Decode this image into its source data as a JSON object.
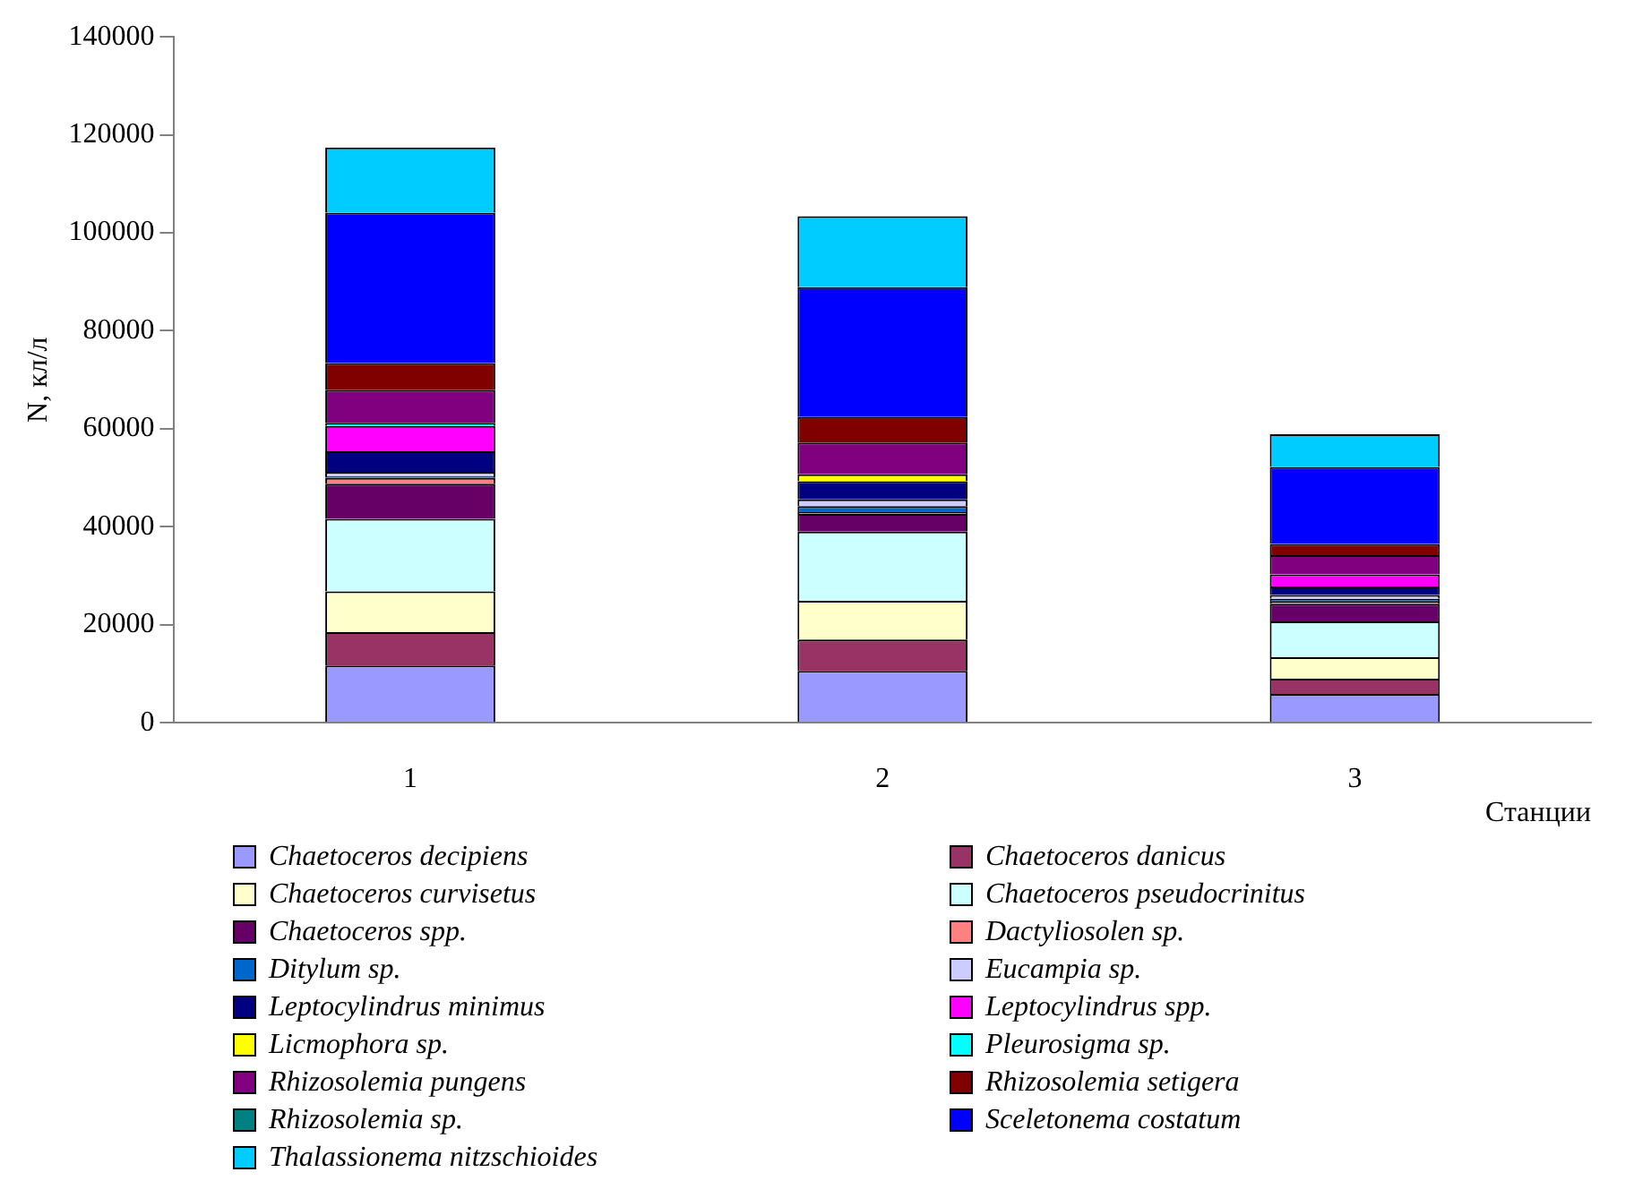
{
  "chart_data": {
    "type": "bar",
    "stacked": true,
    "xlabel": "Станции",
    "ylabel": "N, кл/л",
    "categories": [
      "1",
      "2",
      "3"
    ],
    "ylim": [
      0,
      140000
    ],
    "yticks": [
      0,
      20000,
      40000,
      60000,
      80000,
      100000,
      120000,
      140000
    ],
    "grid": false,
    "legend": "bottom",
    "series": [
      {
        "name": "Chaetoceros decipiens",
        "color": "#9999ff",
        "values": [
          11700,
          10600,
          5900
        ]
      },
      {
        "name": "Chaetoceros danicus",
        "color": "#993366",
        "values": [
          6800,
          6400,
          3100
        ]
      },
      {
        "name": "Chaetoceros curvisetus",
        "color": "#ffffcc",
        "values": [
          8300,
          7900,
          4400
        ]
      },
      {
        "name": "Chaetoceros pseudocrinitus",
        "color": "#ccffff",
        "values": [
          14800,
          14100,
          7300
        ]
      },
      {
        "name": "Chaetoceros spp.",
        "color": "#660066",
        "values": [
          7200,
          3600,
          3600
        ]
      },
      {
        "name": "Dactyliosolen sp.",
        "color": "#ff8080",
        "values": [
          1200,
          400,
          400
        ]
      },
      {
        "name": "Ditylum sp.",
        "color": "#0066cc",
        "values": [
          300,
          1200,
          600
        ]
      },
      {
        "name": "Eucampia sp.",
        "color": "#ccccff",
        "values": [
          900,
          1400,
          800
        ]
      },
      {
        "name": "Leptocylindrus minimus",
        "color": "#000080",
        "values": [
          4200,
          3700,
          1700
        ]
      },
      {
        "name": "Leptocylindrus spp.",
        "color": "#ff00ff",
        "values": [
          5200,
          0,
          2500
        ]
      },
      {
        "name": "Licmophora sp.",
        "color": "#ffff00",
        "values": [
          0,
          1400,
          0
        ]
      },
      {
        "name": "Pleurosigma sp.",
        "color": "#00ffff",
        "values": [
          600,
          0,
          0
        ]
      },
      {
        "name": "Rhizosolemia pungens",
        "color": "#800080",
        "values": [
          6800,
          6500,
          3900
        ]
      },
      {
        "name": "Rhizosolemia setigera",
        "color": "#800000",
        "values": [
          5400,
          5200,
          2300
        ]
      },
      {
        "name": "Rhizosolemia sp.",
        "color": "#008080",
        "values": [
          0,
          0,
          0
        ]
      },
      {
        "name": "Sceletonema costatum",
        "color": "#0000ff",
        "values": [
          30700,
          26500,
          15700
        ]
      },
      {
        "name": "Thalassionema nitzschioides",
        "color": "#00ccff",
        "values": [
          13300,
          14500,
          6700
        ]
      }
    ]
  }
}
